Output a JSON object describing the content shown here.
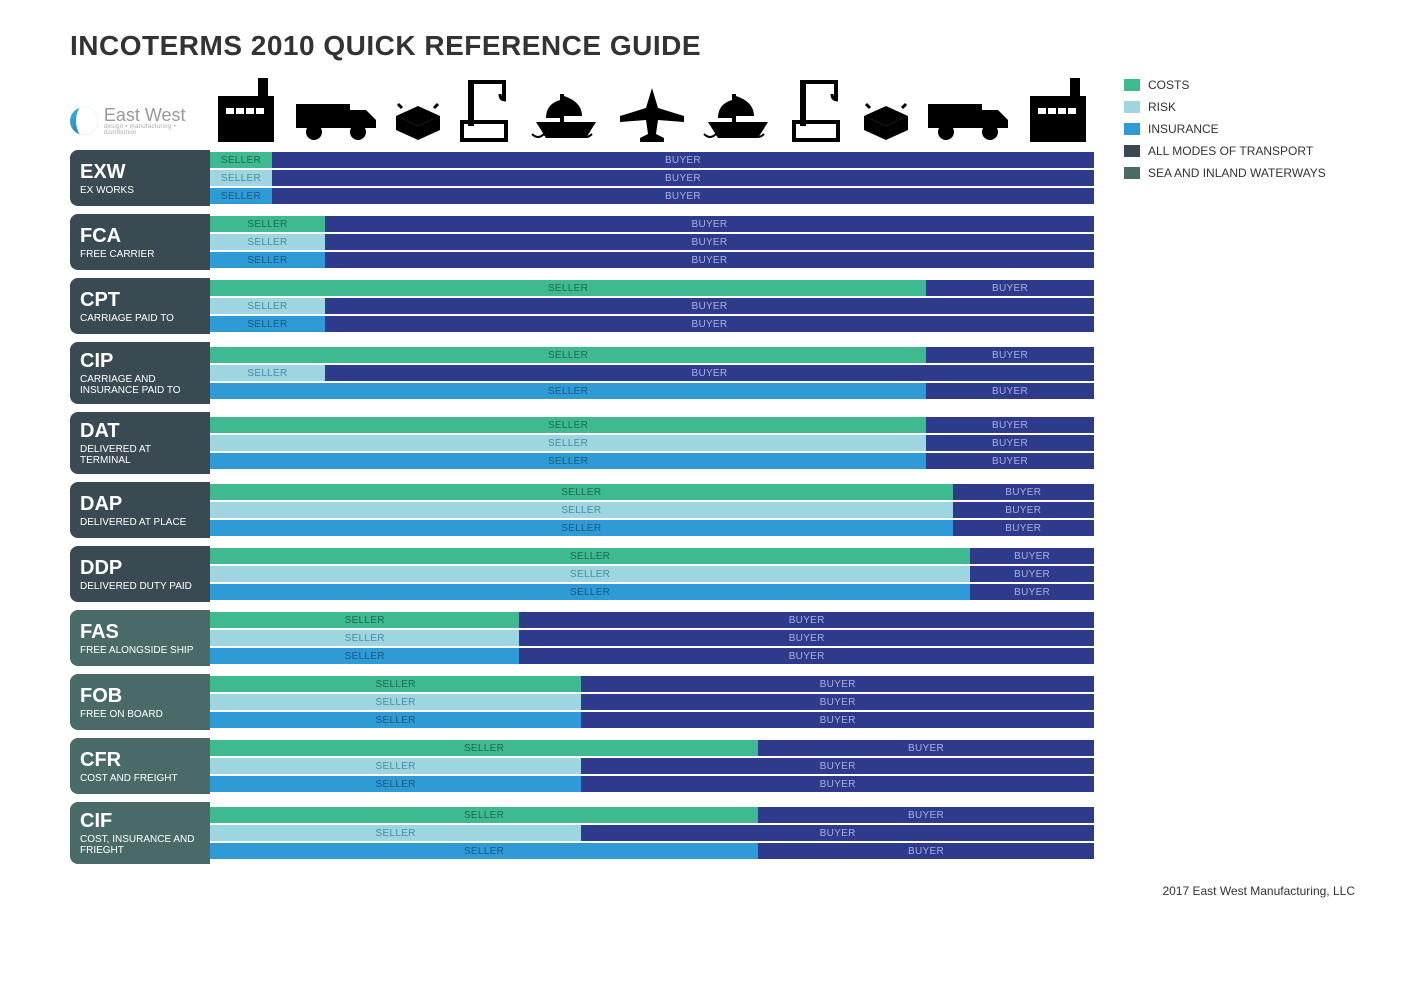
{
  "title": "INCOTERMS 2010 QUICK REFERENCE GUIDE",
  "logo": {
    "name": "East West",
    "sub": "design • manufacturing • distribution"
  },
  "colors": {
    "costs_seller": "#3fb98f",
    "risk_seller": "#9dd6e0",
    "insurance_seller": "#2e9ad6",
    "buyer": "#2e3a8c",
    "label_all_modes": "#3a4a52",
    "label_sea": "#4a6a68",
    "seller_text_on_green": "#1a6b54",
    "seller_text_on_lightblue": "#4a8ca0",
    "seller_text_on_blue": "#1a5a80",
    "buyer_text": "#a8b0e0",
    "icon_fill": "#000000"
  },
  "legend": [
    {
      "label": "COSTS",
      "color_key": "costs_seller"
    },
    {
      "label": "RISK",
      "color_key": "risk_seller"
    },
    {
      "label": "INSURANCE",
      "color_key": "insurance_seller"
    },
    {
      "label": "ALL MODES OF TRANSPORT",
      "color_key": "label_all_modes"
    },
    {
      "label": "SEA AND INLAND WATERWAYS",
      "color_key": "label_sea"
    }
  ],
  "labels": {
    "seller": "SELLER",
    "buyer": "BUYER"
  },
  "icons": [
    "warehouse",
    "truck",
    "box",
    "crane",
    "ship",
    "plane",
    "ship",
    "crane",
    "box",
    "truck",
    "warehouse"
  ],
  "terms": [
    {
      "code": "EXW",
      "name": "EX WORKS",
      "mode": "all",
      "bars": {
        "costs": 7,
        "risk": 7,
        "insurance": 7
      }
    },
    {
      "code": "FCA",
      "name": "FREE CARRIER",
      "mode": "all",
      "bars": {
        "costs": 13,
        "risk": 13,
        "insurance": 13
      }
    },
    {
      "code": "CPT",
      "name": "CARRIAGE PAID TO",
      "mode": "all",
      "bars": {
        "costs": 81,
        "risk": 13,
        "insurance": 13
      }
    },
    {
      "code": "CIP",
      "name": "CARRIAGE AND INSURANCE PAID TO",
      "mode": "all",
      "bars": {
        "costs": 81,
        "risk": 13,
        "insurance": 81
      }
    },
    {
      "code": "DAT",
      "name": "DELIVERED AT TERMINAL",
      "mode": "all",
      "bars": {
        "costs": 81,
        "risk": 81,
        "insurance": 81
      }
    },
    {
      "code": "DAP",
      "name": "DELIVERED AT PLACE",
      "mode": "all",
      "bars": {
        "costs": 84,
        "risk": 84,
        "insurance": 84
      }
    },
    {
      "code": "DDP",
      "name": "DELIVERED DUTY PAID",
      "mode": "all",
      "bars": {
        "costs": 86,
        "risk": 86,
        "insurance": 86
      }
    },
    {
      "code": "FAS",
      "name": "FREE ALONGSIDE SHIP",
      "mode": "sea",
      "bars": {
        "costs": 35,
        "risk": 35,
        "insurance": 35
      }
    },
    {
      "code": "FOB",
      "name": "FREE ON BOARD",
      "mode": "sea",
      "bars": {
        "costs": 42,
        "risk": 42,
        "insurance": 42
      }
    },
    {
      "code": "CFR",
      "name": "COST AND FREIGHT",
      "mode": "sea",
      "bars": {
        "costs": 62,
        "risk": 42,
        "insurance": 42
      }
    },
    {
      "code": "CIF",
      "name": "COST, INSURANCE AND FRIEGHT",
      "mode": "sea",
      "bars": {
        "costs": 62,
        "risk": 42,
        "insurance": 62
      }
    }
  ],
  "footer": "2017 East West Manufacturing, LLC"
}
